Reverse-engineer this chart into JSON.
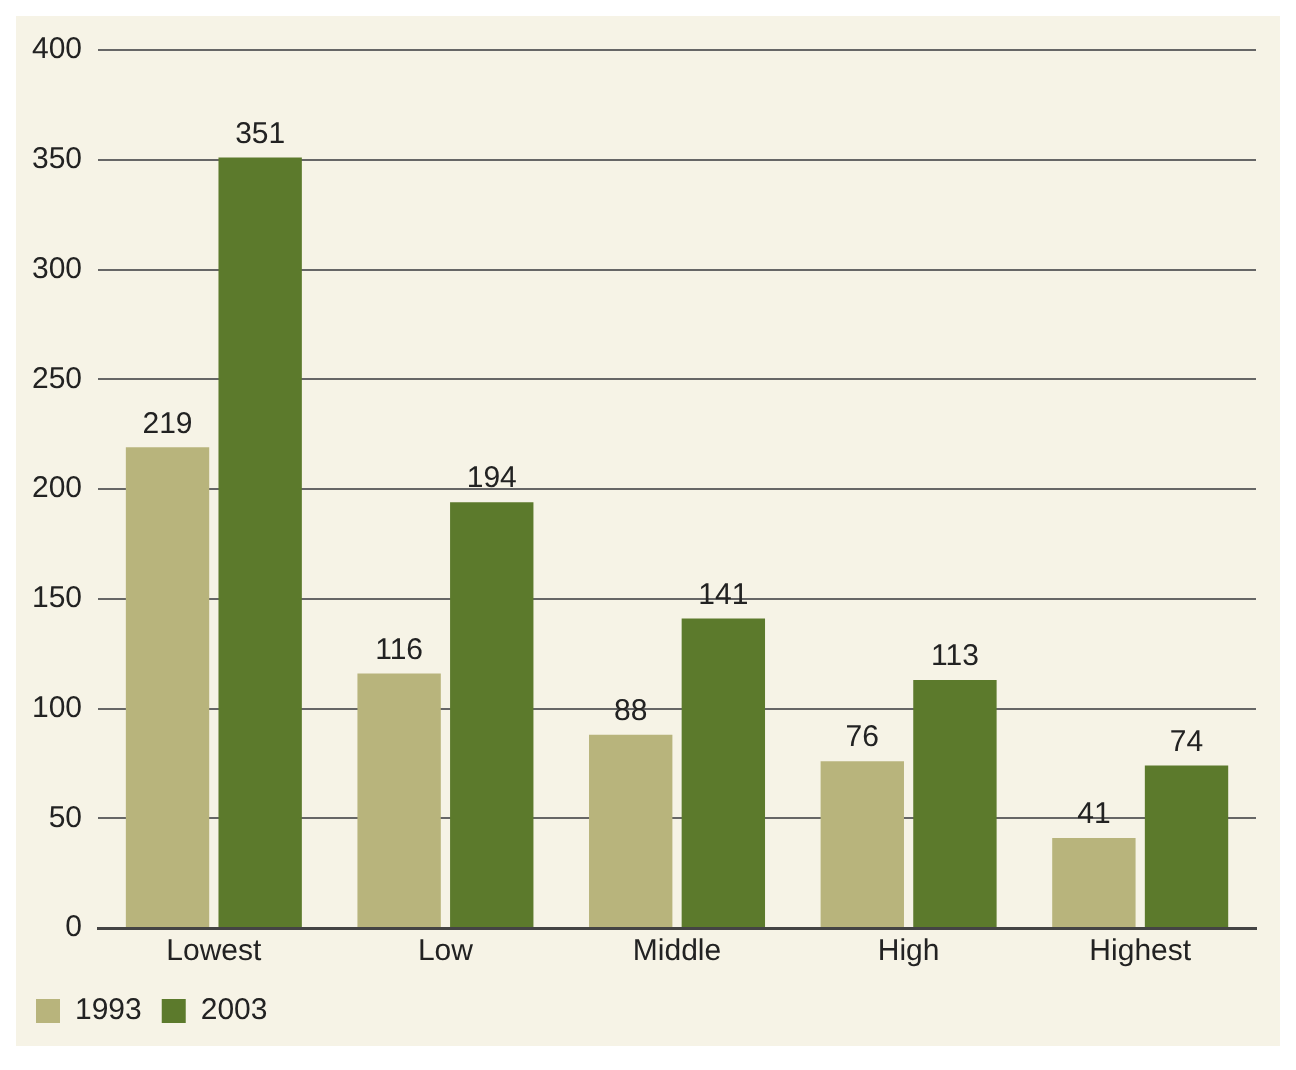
{
  "chart_data": {
    "type": "bar",
    "categories": [
      "Lowest",
      "Low",
      "Middle",
      "High",
      "Highest"
    ],
    "series": [
      {
        "name": "1993",
        "color": "#b8b47c",
        "values": [
          219,
          116,
          88,
          76,
          41
        ]
      },
      {
        "name": "2003",
        "color": "#5c7a2c",
        "values": [
          351,
          194,
          141,
          113,
          74
        ]
      }
    ],
    "ylim": [
      0,
      400
    ],
    "yticks": [
      0,
      50,
      100,
      150,
      200,
      250,
      300,
      350,
      400
    ],
    "grid": "y",
    "legend": "bottom left",
    "data_labels": true
  }
}
